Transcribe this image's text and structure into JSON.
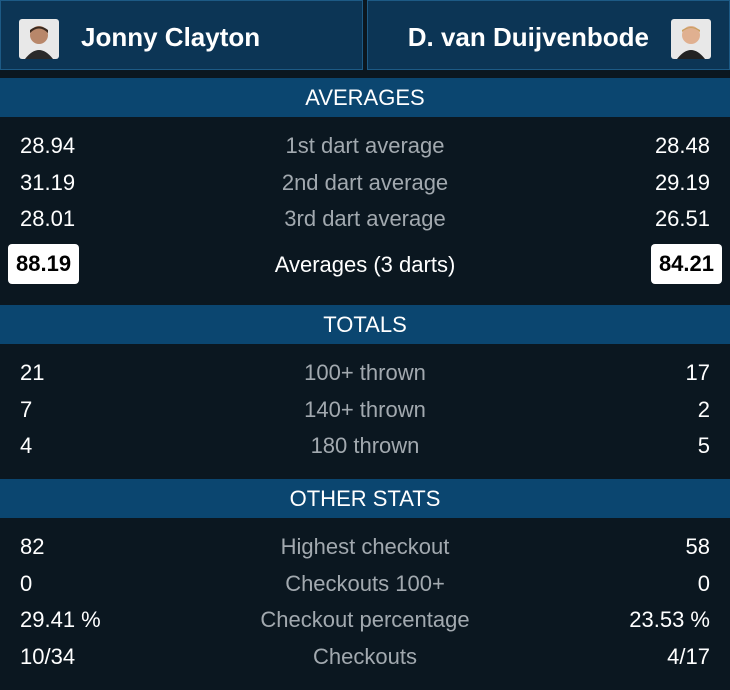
{
  "players": {
    "left": "Jonny Clayton",
    "right": "D. van Duijvenbode"
  },
  "sections": [
    {
      "title": "AVERAGES",
      "rows": [
        {
          "left": "28.94",
          "label": "1st dart average",
          "right": "28.48"
        },
        {
          "left": "31.19",
          "label": "2nd dart average",
          "right": "29.19"
        },
        {
          "left": "28.01",
          "label": "3rd dart average",
          "right": "26.51"
        }
      ],
      "summary": {
        "left": "88.19",
        "label": "Averages (3 darts)",
        "right": "84.21"
      }
    },
    {
      "title": "TOTALS",
      "rows": [
        {
          "left": "21",
          "label": "100+ thrown",
          "right": "17"
        },
        {
          "left": "7",
          "label": "140+ thrown",
          "right": "2"
        },
        {
          "left": "4",
          "label": "180 thrown",
          "right": "5"
        }
      ]
    },
    {
      "title": "OTHER STATS",
      "rows": [
        {
          "left": "82",
          "label": "Highest checkout",
          "right": "58"
        },
        {
          "left": "0",
          "label": "Checkouts 100+",
          "right": "0"
        },
        {
          "left": "29.41 %",
          "label": "Checkout percentage",
          "right": "23.53 %"
        },
        {
          "left": "10/34",
          "label": "Checkouts",
          "right": "4/17"
        }
      ]
    }
  ]
}
